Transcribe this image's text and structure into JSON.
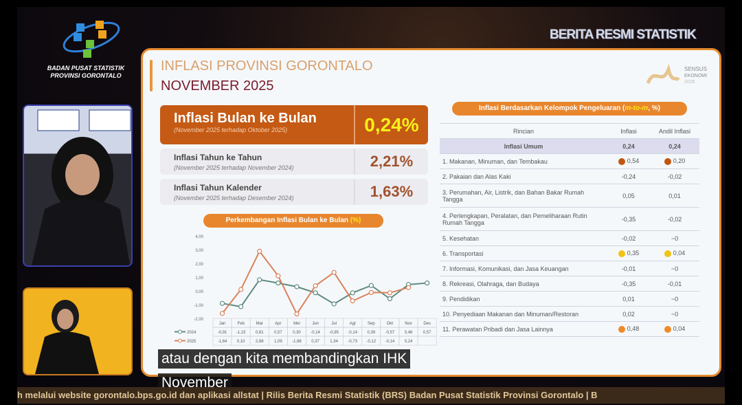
{
  "header": {
    "org_line1": "BADAN PUSAT STATISTIK",
    "org_line2": "PROVINSI GORONTALO",
    "program": "BERITA RESMI STATISTIK",
    "sensus_logo": "SENSUS EKONOMI 2026"
  },
  "slide": {
    "title": "INFLASI PROVINSI GORONTALO",
    "subtitle": "NOVEMBER 2025",
    "cards": [
      {
        "label": "Inflasi Bulan ke Bulan",
        "note": "(November 2025 terhadap Oktober 2025)",
        "value": "0,24%"
      },
      {
        "label": "Inflasi Tahun ke Tahun",
        "note": "(November 2025 terhadap November 2024)",
        "value": "2,21%"
      },
      {
        "label": "Inflasi Tahun Kalender",
        "note": "(November 2025 terhadap Desember 2024)",
        "value": "1,63%"
      }
    ],
    "chart_title": "Perkembangan Inflasi Bulan ke Bulan ",
    "chart_title_unit": "(%)",
    "table_title": "Inflasi Berdasarkan Kelompok Pengeluaran (",
    "table_title_em": "m-to-m",
    "table_title_end": ", %)",
    "table_headers": [
      "Rincian",
      "Inflasi",
      "Andil Inflasi"
    ],
    "table_rows": [
      {
        "label": "Inflasi Umum",
        "inflasi": "0,24",
        "andil": "0,24"
      },
      {
        "label": "1. Makanan, Minuman, dan Tembakau",
        "inflasi": "0,54",
        "andil": "0,20",
        "dot": "#c0560f"
      },
      {
        "label": "2. Pakaian dan Alas Kaki",
        "inflasi": "-0,24",
        "andil": "-0,02"
      },
      {
        "label": "3. Perumahan, Air, Listrik, dan Bahan Bakar Rumah Tangga",
        "inflasi": "0,05",
        "andil": "0,01"
      },
      {
        "label": "4. Perlengkapan, Peralatan, dan Pemeliharaan Rutin Rumah Tangga",
        "inflasi": "-0,35",
        "andil": "-0,02"
      },
      {
        "label": "5. Kesehatan",
        "inflasi": "-0,02",
        "andil": "~0"
      },
      {
        "label": "6. Transportasi",
        "inflasi": "0,35",
        "andil": "0,04",
        "dot": "#f2c313"
      },
      {
        "label": "7. Informasi, Komunikasi, dan Jasa Keuangan",
        "inflasi": "-0,01",
        "andil": "~0"
      },
      {
        "label": "8. Rekreasi, Olahraga, dan Budaya",
        "inflasi": "-0,35",
        "andil": "-0,01"
      },
      {
        "label": "9. Pendidikan",
        "inflasi": "0,01",
        "andil": "~0"
      },
      {
        "label": "10. Penyediaan Makanan dan Minuman/Restoran",
        "inflasi": "0,02",
        "andil": "~0"
      },
      {
        "label": "11. Perawatan Pribadi dan Jasa Lainnya",
        "inflasi": "0,48",
        "andil": "0,04",
        "dot": "#ef8a2a"
      }
    ]
  },
  "chart_data": {
    "type": "line",
    "categories": [
      "Jan",
      "Feb",
      "Mar",
      "Apr",
      "Mei",
      "Jun",
      "Jul",
      "Agt",
      "Sep",
      "Okt",
      "Nov",
      "Des"
    ],
    "ylim": [
      -2,
      4
    ],
    "yticks": [
      "4,00",
      "3,00",
      "2,00",
      "1,00",
      "0,00",
      "-1,00",
      "-2,00"
    ],
    "ytick_values": [
      4,
      3,
      2,
      1,
      0,
      -1,
      -2
    ],
    "series": [
      {
        "name": "2024",
        "color": "#5f8a80",
        "values": [
          -0.91,
          -1.15,
          0.81,
          0.57,
          0.3,
          -0.14,
          -0.95,
          -0.14,
          0.39,
          -0.57,
          0.46,
          0.57
        ],
        "labels": [
          "-0,91",
          "-1,15",
          "0,81",
          "0,57",
          "0,30",
          "-0,14",
          "-0,95",
          "-0,14",
          "0,39",
          "-0,57",
          "0,46",
          "0,57"
        ]
      },
      {
        "name": "2025",
        "color": "#d9825a",
        "values": [
          -1.64,
          0.1,
          2.88,
          1.09,
          -1.68,
          0.37,
          1.34,
          -0.73,
          -0.12,
          -0.14,
          0.24,
          null
        ],
        "labels": [
          "-1,64",
          "0,10",
          "2,88",
          "1,09",
          "-1,68",
          "0,37",
          "1,34",
          "-0,73",
          "-0,12",
          "-0,14",
          "0,24",
          ""
        ]
      }
    ]
  },
  "captions": {
    "line1": "atau dengan kita membandingkan IHK",
    "line2": "November"
  },
  "ticker": "h melalui website gorontalo.bps.go.id dan aplikasi allstat | Rilis Berita Resmi Statistik (BRS) Badan Pusat Statistik Provinsi Gorontalo | B"
}
